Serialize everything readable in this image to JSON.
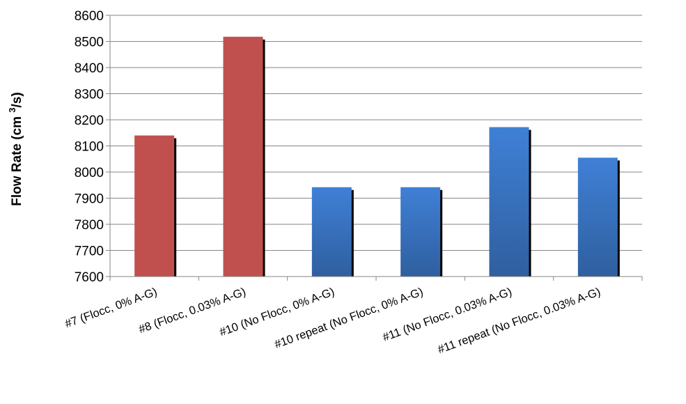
{
  "chart_data": {
    "type": "bar",
    "title": "",
    "xlabel": "",
    "ylabel": "Flow Rate (cm 3/s)",
    "ylabel_parts": {
      "before": "Flow Rate (cm ",
      "sup": "3",
      "after": "/s)"
    },
    "ylim": [
      7600,
      8600
    ],
    "ytick_step": 100,
    "grid": true,
    "legend": "none",
    "categories": [
      "#7 (Flocc, 0% A-G)",
      "#8 (Flocc, 0.03% A-G)",
      "#10 (No Flocc, 0% A-G)",
      "#10 repeat (No Flocc, 0% A-G)",
      "#11 (No Flocc, 0.03% A-G)",
      "#11 repeat (No Flocc, 0.03% A-G)"
    ],
    "values": [
      8140,
      8518,
      7942,
      7942,
      8172,
      8055
    ],
    "bar_colors": [
      "#c0504d",
      "#c0504d",
      "#3d7ac9",
      "#3d7ac9",
      "#3d7ac9",
      "#3d7ac9"
    ]
  }
}
